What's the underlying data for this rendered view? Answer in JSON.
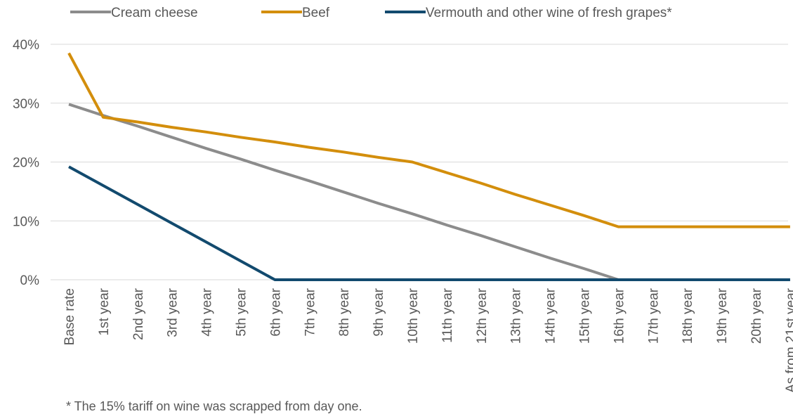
{
  "chart_data": {
    "type": "line",
    "categories": [
      "Base rate",
      "1st year",
      "2nd year",
      "3rd year",
      "4th year",
      "5th year",
      "6th year",
      "7th year",
      "8th year",
      "9th year",
      "10th year",
      "11th year",
      "12th year",
      "13th year",
      "14th year",
      "15th year",
      "16th year",
      "17th year",
      "18th year",
      "19th year",
      "20th year",
      "As from 21st year"
    ],
    "series": [
      {
        "name": "Cream cheese",
        "color": "#8c8c8c",
        "values": [
          29.8,
          27.9,
          26.1,
          24.2,
          22.3,
          20.5,
          18.6,
          16.8,
          14.9,
          13.0,
          11.2,
          9.3,
          7.5,
          5.6,
          3.7,
          1.9,
          0,
          0,
          0,
          0,
          0,
          0
        ]
      },
      {
        "name": "Beef",
        "color": "#d38e0c",
        "values": [
          38.5,
          27.6,
          26.8,
          25.9,
          25.1,
          24.2,
          23.4,
          22.5,
          21.7,
          20.8,
          20.0,
          18.2,
          16.4,
          14.5,
          12.7,
          10.9,
          9.0,
          9.0,
          9.0,
          9.0,
          9.0,
          9.0
        ]
      },
      {
        "name": "Vermouth and other wine of fresh grapes*",
        "color": "#124a6e",
        "values": [
          19.2,
          16.0,
          12.8,
          9.6,
          6.4,
          3.2,
          0,
          0,
          0,
          0,
          0,
          0,
          0,
          0,
          0,
          0,
          0,
          0,
          0,
          0,
          0,
          0
        ]
      }
    ],
    "y_ticks": [
      "0%",
      "10%",
      "20%",
      "30%",
      "40%"
    ],
    "ylim": [
      0,
      40
    ],
    "grid": true,
    "legend": "top",
    "footnote": "* The 15% tariff on wine was scrapped from day one."
  }
}
